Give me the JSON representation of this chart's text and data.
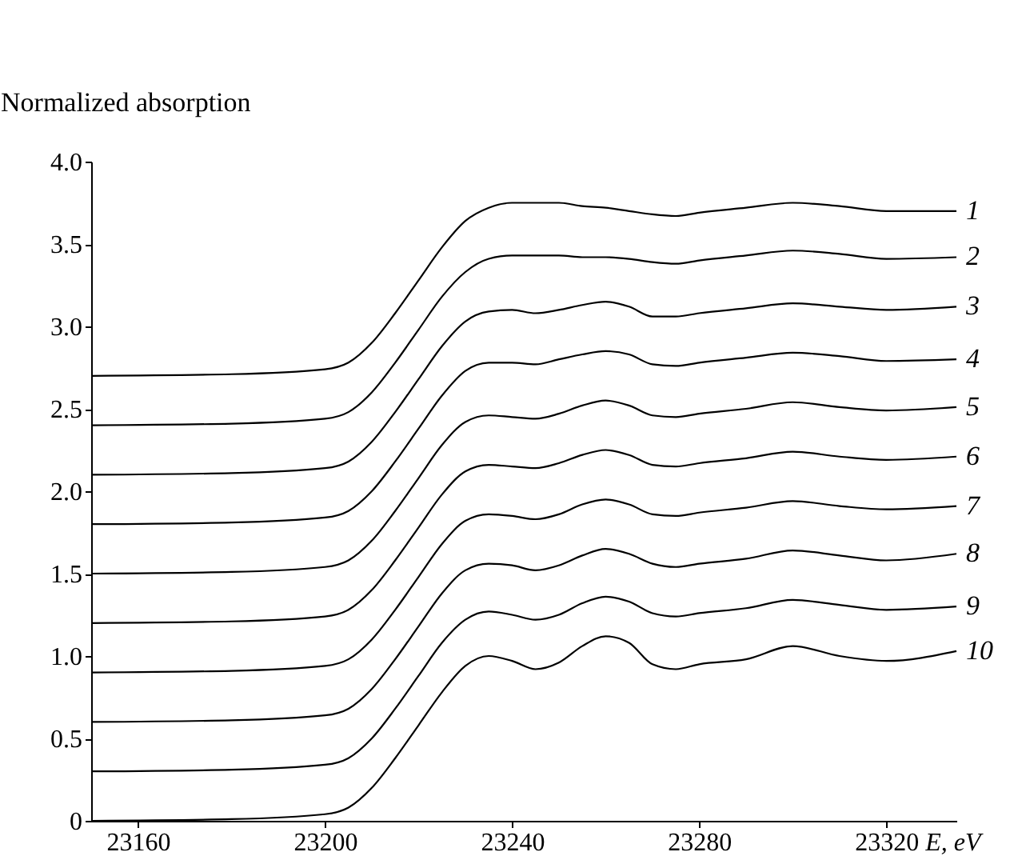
{
  "chart_data": {
    "type": "line",
    "ylabel": "Normalized absorption",
    "xlabel": "E, eV",
    "x": [
      23150,
      23180,
      23200,
      23205,
      23210,
      23215,
      23220,
      23225,
      23230,
      23235,
      23240,
      23245,
      23250,
      23255,
      23260,
      23265,
      23270,
      23275,
      23280,
      23290,
      23300,
      23310,
      23320,
      23335
    ],
    "xlim": [
      23150,
      23335
    ],
    "xticks": [
      23160,
      23200,
      23240,
      23280,
      23320
    ],
    "ylim": [
      0,
      4
    ],
    "yticks": [
      {
        "value": 0,
        "label": "0"
      },
      {
        "value": 0.5,
        "label": "0.5"
      },
      {
        "value": 1,
        "label": "1.0"
      },
      {
        "value": 1.5,
        "label": "1.5"
      },
      {
        "value": 2,
        "label": "2.0"
      },
      {
        "value": 2.5,
        "label": "2.5"
      },
      {
        "value": 3,
        "label": "3.0"
      },
      {
        "value": 3.5,
        "label": "3.5"
      },
      {
        "value": 4,
        "label": "4.0"
      }
    ],
    "grid": false,
    "legend": false,
    "series": [
      {
        "name": "1",
        "color": "#000000",
        "values": [
          2.7,
          2.71,
          2.74,
          2.78,
          2.9,
          3.08,
          3.28,
          3.48,
          3.64,
          3.72,
          3.75,
          3.75,
          3.75,
          3.73,
          3.72,
          3.7,
          3.68,
          3.67,
          3.69,
          3.72,
          3.75,
          3.73,
          3.7,
          3.7
        ]
      },
      {
        "name": "2",
        "color": "#000000",
        "values": [
          2.4,
          2.41,
          2.44,
          2.48,
          2.6,
          2.78,
          2.98,
          3.18,
          3.33,
          3.41,
          3.43,
          3.43,
          3.43,
          3.42,
          3.42,
          3.41,
          3.39,
          3.38,
          3.4,
          3.43,
          3.46,
          3.44,
          3.41,
          3.42
        ]
      },
      {
        "name": "3",
        "color": "#000000",
        "values": [
          2.1,
          2.11,
          2.14,
          2.18,
          2.3,
          2.48,
          2.68,
          2.88,
          3.03,
          3.09,
          3.1,
          3.08,
          3.1,
          3.13,
          3.15,
          3.12,
          3.06,
          3.06,
          3.08,
          3.11,
          3.14,
          3.12,
          3.1,
          3.12
        ]
      },
      {
        "name": "4",
        "color": "#000000",
        "values": [
          1.8,
          1.81,
          1.84,
          1.88,
          2.0,
          2.18,
          2.38,
          2.58,
          2.73,
          2.78,
          2.78,
          2.77,
          2.8,
          2.83,
          2.85,
          2.83,
          2.77,
          2.76,
          2.78,
          2.81,
          2.84,
          2.82,
          2.79,
          2.8
        ]
      },
      {
        "name": "5",
        "color": "#000000",
        "values": [
          1.5,
          1.51,
          1.54,
          1.58,
          1.7,
          1.88,
          2.08,
          2.28,
          2.42,
          2.46,
          2.45,
          2.44,
          2.47,
          2.52,
          2.55,
          2.52,
          2.46,
          2.45,
          2.47,
          2.5,
          2.54,
          2.51,
          2.49,
          2.51
        ]
      },
      {
        "name": "6",
        "color": "#000000",
        "values": [
          1.2,
          1.21,
          1.24,
          1.28,
          1.4,
          1.58,
          1.78,
          1.98,
          2.12,
          2.16,
          2.15,
          2.14,
          2.17,
          2.22,
          2.25,
          2.22,
          2.16,
          2.15,
          2.17,
          2.2,
          2.24,
          2.21,
          2.19,
          2.21
        ]
      },
      {
        "name": "7",
        "color": "#000000",
        "values": [
          0.9,
          0.91,
          0.94,
          0.98,
          1.1,
          1.28,
          1.48,
          1.68,
          1.82,
          1.86,
          1.85,
          1.83,
          1.86,
          1.92,
          1.95,
          1.92,
          1.86,
          1.85,
          1.87,
          1.9,
          1.94,
          1.91,
          1.89,
          1.91
        ]
      },
      {
        "name": "8",
        "color": "#000000",
        "values": [
          0.6,
          0.61,
          0.64,
          0.68,
          0.8,
          0.98,
          1.18,
          1.38,
          1.52,
          1.56,
          1.55,
          1.52,
          1.55,
          1.61,
          1.65,
          1.62,
          1.56,
          1.54,
          1.56,
          1.59,
          1.64,
          1.61,
          1.58,
          1.62
        ]
      },
      {
        "name": "9",
        "color": "#000000",
        "values": [
          0.3,
          0.31,
          0.34,
          0.38,
          0.5,
          0.68,
          0.88,
          1.08,
          1.22,
          1.27,
          1.25,
          1.22,
          1.25,
          1.32,
          1.36,
          1.33,
          1.26,
          1.24,
          1.26,
          1.29,
          1.34,
          1.31,
          1.28,
          1.3
        ]
      },
      {
        "name": "10",
        "color": "#000000",
        "values": [
          0,
          0.01,
          0.04,
          0.08,
          0.2,
          0.38,
          0.58,
          0.78,
          0.94,
          1.0,
          0.97,
          0.92,
          0.96,
          1.06,
          1.12,
          1.08,
          0.95,
          0.92,
          0.95,
          0.98,
          1.06,
          1.0,
          0.97,
          1.03
        ]
      }
    ]
  }
}
